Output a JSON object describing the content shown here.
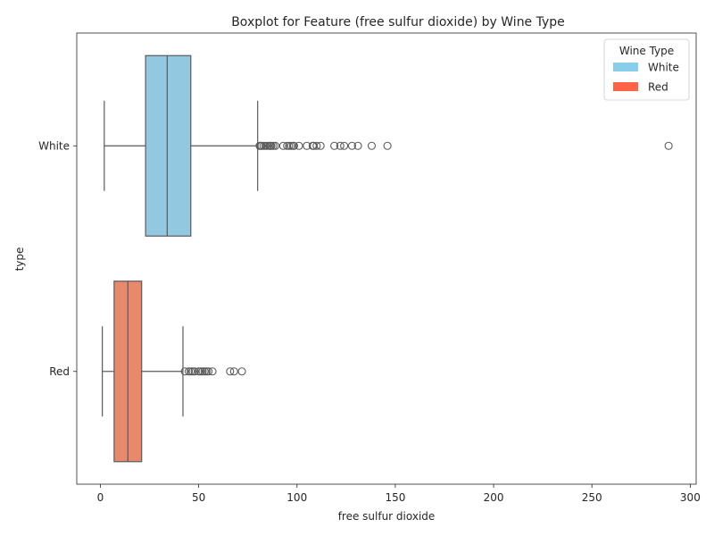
{
  "chart_data": {
    "type": "boxplot",
    "orientation": "horizontal",
    "title": "Boxplot for Feature (free sulfur dioxide) by Wine Type",
    "xlabel": "free sulfur dioxide",
    "ylabel": "type",
    "xlim": [
      -12,
      303
    ],
    "xticks": [
      0,
      50,
      100,
      150,
      200,
      250,
      300
    ],
    "grid": false,
    "categories": [
      "White",
      "Red"
    ],
    "legend": {
      "title": "Wine Type",
      "placement": "top-right",
      "entries": [
        {
          "label": "White",
          "color": "#87CEEB"
        },
        {
          "label": "Red",
          "color": "#FF6347"
        }
      ]
    },
    "series": [
      {
        "name": "White",
        "box_color": "#92C9E0",
        "whisker_low": 2,
        "q1": 23,
        "median": 34,
        "q3": 46,
        "whisker_high": 80,
        "outliers": [
          81,
          81.5,
          82,
          83,
          84,
          85,
          86,
          86.5,
          87,
          88,
          89,
          93,
          95,
          96,
          97,
          98,
          98.5,
          101,
          105,
          108,
          108.5,
          110,
          112,
          119,
          122,
          124,
          128,
          131,
          138,
          146,
          289
        ]
      },
      {
        "name": "Red",
        "box_color": "#E8896B",
        "whisker_low": 1,
        "q1": 7,
        "median": 14,
        "q3": 21,
        "whisker_high": 42,
        "outliers": [
          43,
          45,
          46,
          47,
          48,
          50,
          51,
          52,
          53,
          54,
          55,
          57,
          66,
          68,
          72
        ]
      }
    ]
  }
}
